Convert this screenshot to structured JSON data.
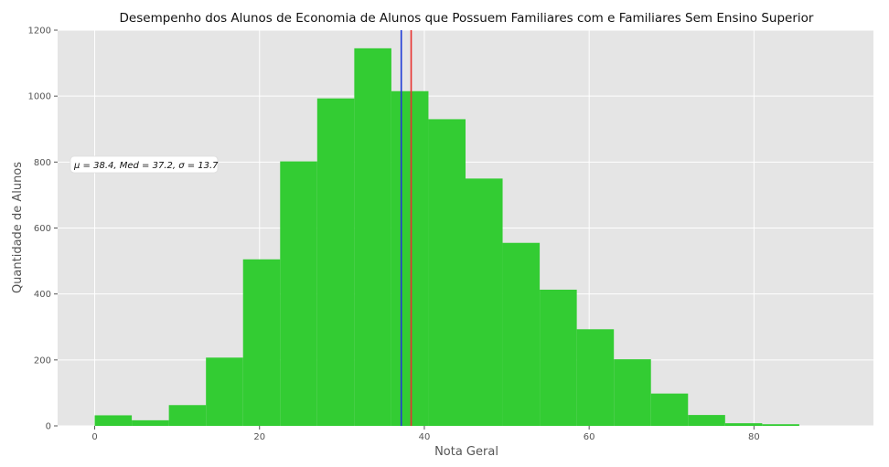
{
  "chart_data": {
    "type": "bar",
    "title": "Desempenho dos Alunos de Economia de Alunos que Possuem Familiares com e Familiares Sem Ensino Superior",
    "xlabel": "Nota Geral",
    "ylabel": "Quantidade de Alunos",
    "xlim": [
      -4.5,
      94.5
    ],
    "ylim": [
      0,
      1200
    ],
    "xticks": [
      0,
      20,
      40,
      60,
      80
    ],
    "yticks": [
      0,
      200,
      400,
      600,
      800,
      1000,
      1200
    ],
    "grid": true,
    "bins": [
      {
        "x0": 0.0,
        "x1": 4.5,
        "value": 32
      },
      {
        "x0": 4.5,
        "x1": 9.0,
        "value": 17
      },
      {
        "x0": 9.0,
        "x1": 13.5,
        "value": 63
      },
      {
        "x0": 13.5,
        "x1": 18.0,
        "value": 207
      },
      {
        "x0": 18.0,
        "x1": 22.5,
        "value": 505
      },
      {
        "x0": 22.5,
        "x1": 27.0,
        "value": 802
      },
      {
        "x0": 27.0,
        "x1": 31.5,
        "value": 993
      },
      {
        "x0": 31.5,
        "x1": 36.0,
        "value": 1145
      },
      {
        "x0": 36.0,
        "x1": 40.5,
        "value": 1015
      },
      {
        "x0": 40.5,
        "x1": 45.0,
        "value": 930
      },
      {
        "x0": 45.0,
        "x1": 49.5,
        "value": 750
      },
      {
        "x0": 49.5,
        "x1": 54.0,
        "value": 555
      },
      {
        "x0": 54.0,
        "x1": 58.5,
        "value": 413
      },
      {
        "x0": 58.5,
        "x1": 63.0,
        "value": 293
      },
      {
        "x0": 63.0,
        "x1": 67.5,
        "value": 202
      },
      {
        "x0": 67.5,
        "x1": 72.0,
        "value": 98
      },
      {
        "x0": 72.0,
        "x1": 76.5,
        "value": 33
      },
      {
        "x0": 76.5,
        "x1": 81.0,
        "value": 8
      },
      {
        "x0": 81.0,
        "x1": 85.5,
        "value": 5
      }
    ],
    "mean_line": {
      "value": 38.4,
      "color": "#e8312f"
    },
    "median_line": {
      "value": 37.2,
      "color": "#1f3bd6"
    },
    "stats_text": "μ = 38.4,  Med = 37.2,  σ = 13.7",
    "colors": {
      "bar": "#33cc33",
      "background": "#e5e5e5",
      "grid": "#ffffff"
    }
  }
}
